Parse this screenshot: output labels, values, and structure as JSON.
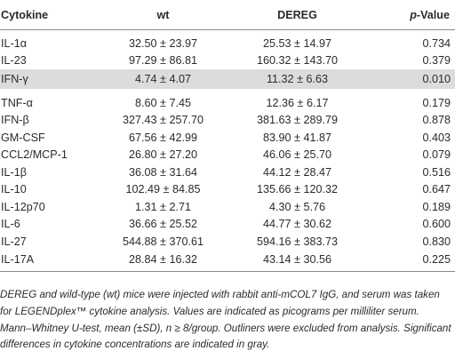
{
  "table": {
    "headers": {
      "cytokine": "Cytokine",
      "wt": "wt",
      "dereg": "DEREG",
      "p_italic": "p",
      "p_rest": "-Value"
    },
    "rows": [
      {
        "cytokine": "IL-1α",
        "wt": "32.50 ± 23.97",
        "dereg": "25.53 ± 14.97",
        "p": "0.734",
        "highlight": false
      },
      {
        "cytokine": "IL-23",
        "wt": "97.29 ± 86.81",
        "dereg": "160.32 ± 143.70",
        "p": "0.379",
        "highlight": false
      },
      {
        "cytokine": "IFN-γ",
        "wt": "4.74 ± 4.07",
        "dereg": "11.32 ± 6.63",
        "p": "0.010",
        "highlight": true
      },
      {
        "cytokine": "TNF-α",
        "wt": "8.60 ± 7.45",
        "dereg": "12.36 ± 6.17",
        "p": "0.179",
        "highlight": false
      },
      {
        "cytokine": "IFN-β",
        "wt": "327.43 ± 257.70",
        "dereg": "381.63 ± 289.79",
        "p": "0.878",
        "highlight": false
      },
      {
        "cytokine": "GM-CSF",
        "wt": "67.56 ± 42.99",
        "dereg": "83.90 ± 41.87",
        "p": "0.403",
        "highlight": false
      },
      {
        "cytokine": "CCL2/MCP-1",
        "wt": "26.80 ± 27.20",
        "dereg": "46.06 ± 25.70",
        "p": "0.079",
        "highlight": false
      },
      {
        "cytokine": "IL-1β",
        "wt": "36.08 ± 31.64",
        "dereg": "44.12 ± 28.47",
        "p": "0.516",
        "highlight": false
      },
      {
        "cytokine": "IL-10",
        "wt": "102.49 ± 84.85",
        "dereg": "135.66 ± 120.32",
        "p": "0.647",
        "highlight": false
      },
      {
        "cytokine": "IL-12p70",
        "wt": "1.31 ± 2.71",
        "dereg": "4.30 ± 5.76",
        "p": "0.189",
        "highlight": false
      },
      {
        "cytokine": "IL-6",
        "wt": "36.66 ± 25.52",
        "dereg": "44.77 ± 30.62",
        "p": "0.600",
        "highlight": false
      },
      {
        "cytokine": "IL-27",
        "wt": "544.88 ± 370.61",
        "dereg": "594.16 ± 383.73",
        "p": "0.830",
        "highlight": false
      },
      {
        "cytokine": "IL-17A",
        "wt": "28.84 ± 16.32",
        "dereg": "43.14 ± 30.56",
        "p": "0.225",
        "highlight": false
      }
    ],
    "highlight_color": "#dcdcdc"
  },
  "footnote": {
    "text": "DEREG and wild-type (wt) mice were injected with rabbit anti-mCOL7 IgG, and serum was taken for LEGENDplex™ cytokine analysis. Values are indicated as picograms per milliliter serum. Mann–Whitney U-test, mean (±SD), n ≥ 8/group. Outliners were excluded from analysis. Significant differences in cytokine concentrations are indicated in gray."
  }
}
